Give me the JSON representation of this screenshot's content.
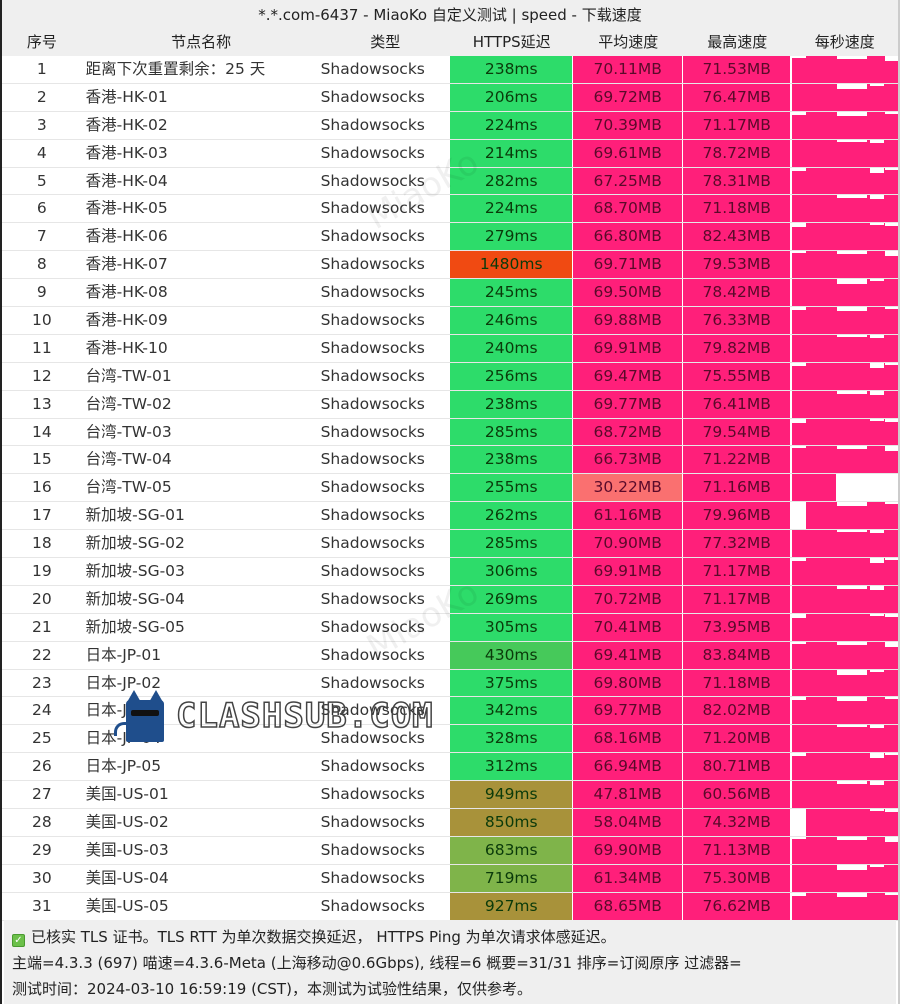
{
  "window": {
    "title": "*.*.com-6437 - MiaoKo 自定义测试 | speed - 下载速度"
  },
  "table": {
    "headers": {
      "index": "序号",
      "name": "节点名称",
      "type": "类型",
      "ping": "HTTPS延迟",
      "avg_speed": "平均速度",
      "max_speed": "最高速度",
      "per_second": "每秒速度"
    },
    "rows": [
      {
        "idx": "1",
        "name": "距离下次重置剩余：25 天",
        "type": "Shadowsocks",
        "ping": "238ms",
        "avg": "70.11MB",
        "max": "71.53MB"
      },
      {
        "idx": "2",
        "name": "香港-HK-01",
        "type": "Shadowsocks",
        "ping": "206ms",
        "avg": "69.72MB",
        "max": "76.47MB"
      },
      {
        "idx": "3",
        "name": "香港-HK-02",
        "type": "Shadowsocks",
        "ping": "224ms",
        "avg": "70.39MB",
        "max": "71.17MB"
      },
      {
        "idx": "4",
        "name": "香港-HK-03",
        "type": "Shadowsocks",
        "ping": "214ms",
        "avg": "69.61MB",
        "max": "78.72MB"
      },
      {
        "idx": "5",
        "name": "香港-HK-04",
        "type": "Shadowsocks",
        "ping": "282ms",
        "avg": "67.25MB",
        "max": "78.31MB"
      },
      {
        "idx": "6",
        "name": "香港-HK-05",
        "type": "Shadowsocks",
        "ping": "224ms",
        "avg": "68.70MB",
        "max": "71.18MB"
      },
      {
        "idx": "7",
        "name": "香港-HK-06",
        "type": "Shadowsocks",
        "ping": "279ms",
        "avg": "66.80MB",
        "max": "82.43MB"
      },
      {
        "idx": "8",
        "name": "香港-HK-07",
        "type": "Shadowsocks",
        "ping": "1480ms",
        "avg": "69.71MB",
        "max": "79.53MB"
      },
      {
        "idx": "9",
        "name": "香港-HK-08",
        "type": "Shadowsocks",
        "ping": "245ms",
        "avg": "69.50MB",
        "max": "78.42MB"
      },
      {
        "idx": "10",
        "name": "香港-HK-09",
        "type": "Shadowsocks",
        "ping": "246ms",
        "avg": "69.88MB",
        "max": "76.33MB"
      },
      {
        "idx": "11",
        "name": "香港-HK-10",
        "type": "Shadowsocks",
        "ping": "240ms",
        "avg": "69.91MB",
        "max": "79.82MB"
      },
      {
        "idx": "12",
        "name": "台湾-TW-01",
        "type": "Shadowsocks",
        "ping": "256ms",
        "avg": "69.47MB",
        "max": "75.55MB"
      },
      {
        "idx": "13",
        "name": "台湾-TW-02",
        "type": "Shadowsocks",
        "ping": "238ms",
        "avg": "69.77MB",
        "max": "76.41MB"
      },
      {
        "idx": "14",
        "name": "台湾-TW-03",
        "type": "Shadowsocks",
        "ping": "285ms",
        "avg": "68.72MB",
        "max": "79.54MB"
      },
      {
        "idx": "15",
        "name": "台湾-TW-04",
        "type": "Shadowsocks",
        "ping": "238ms",
        "avg": "66.73MB",
        "max": "71.22MB"
      },
      {
        "idx": "16",
        "name": "台湾-TW-05",
        "type": "Shadowsocks",
        "ping": "255ms",
        "avg": "30.22MB",
        "max": "71.16MB"
      },
      {
        "idx": "17",
        "name": "新加坡-SG-01",
        "type": "Shadowsocks",
        "ping": "262ms",
        "avg": "61.16MB",
        "max": "79.96MB"
      },
      {
        "idx": "18",
        "name": "新加坡-SG-02",
        "type": "Shadowsocks",
        "ping": "285ms",
        "avg": "70.90MB",
        "max": "77.32MB"
      },
      {
        "idx": "19",
        "name": "新加坡-SG-03",
        "type": "Shadowsocks",
        "ping": "306ms",
        "avg": "69.91MB",
        "max": "71.17MB"
      },
      {
        "idx": "20",
        "name": "新加坡-SG-04",
        "type": "Shadowsocks",
        "ping": "269ms",
        "avg": "70.72MB",
        "max": "71.17MB"
      },
      {
        "idx": "21",
        "name": "新加坡-SG-05",
        "type": "Shadowsocks",
        "ping": "305ms",
        "avg": "70.41MB",
        "max": "73.95MB"
      },
      {
        "idx": "22",
        "name": "日本-JP-01",
        "type": "Shadowsocks",
        "ping": "430ms",
        "avg": "69.41MB",
        "max": "83.84MB"
      },
      {
        "idx": "23",
        "name": "日本-JP-02",
        "type": "Shadowsocks",
        "ping": "375ms",
        "avg": "69.80MB",
        "max": "71.18MB"
      },
      {
        "idx": "24",
        "name": "日本-JP-03",
        "type": "Shadowsocks",
        "ping": "342ms",
        "avg": "69.77MB",
        "max": "82.02MB"
      },
      {
        "idx": "25",
        "name": "日本-JP-04",
        "type": "Shadowsocks",
        "ping": "328ms",
        "avg": "68.16MB",
        "max": "71.20MB"
      },
      {
        "idx": "26",
        "name": "日本-JP-05",
        "type": "Shadowsocks",
        "ping": "312ms",
        "avg": "66.94MB",
        "max": "80.71MB"
      },
      {
        "idx": "27",
        "name": "美国-US-01",
        "type": "Shadowsocks",
        "ping": "949ms",
        "avg": "47.81MB",
        "max": "60.56MB"
      },
      {
        "idx": "28",
        "name": "美国-US-02",
        "type": "Shadowsocks",
        "ping": "850ms",
        "avg": "58.04MB",
        "max": "74.32MB"
      },
      {
        "idx": "29",
        "name": "美国-US-03",
        "type": "Shadowsocks",
        "ping": "683ms",
        "avg": "69.90MB",
        "max": "71.13MB"
      },
      {
        "idx": "30",
        "name": "美国-US-04",
        "type": "Shadowsocks",
        "ping": "719ms",
        "avg": "61.34MB",
        "max": "75.30MB"
      },
      {
        "idx": "31",
        "name": "美国-US-05",
        "type": "Shadowsocks",
        "ping": "927ms",
        "avg": "68.65MB",
        "max": "76.62MB"
      }
    ]
  },
  "colors": {
    "ping_good": "#2ddc6a",
    "ping_ok": "#46c95a",
    "ping_mid": "#7fb44a",
    "ping_slow": "#a8923a",
    "ping_bad": "#f04a12",
    "speed_high": "#ff1f7a",
    "speed_low": "#fa7070",
    "spark": "#ff1f7a"
  },
  "footer": {
    "line1": "已核实 TLS 证书。TLS RTT 为单次数据交换延迟， HTTPS Ping 为单次请求体感延迟。",
    "line2": "主端=4.3.3 (697) 喵速=4.3.6-Meta (上海移动@0.6Gbps), 线程=6 概要=31/31 排序=订阅原序 过滤器=",
    "line3": "测试时间：2024-03-10 16:59:19 (CST)，本测试为试验性结果，仅供参考。"
  },
  "watermark": {
    "text": "CLASHSUB.COM",
    "faint": "MiaoKo"
  }
}
